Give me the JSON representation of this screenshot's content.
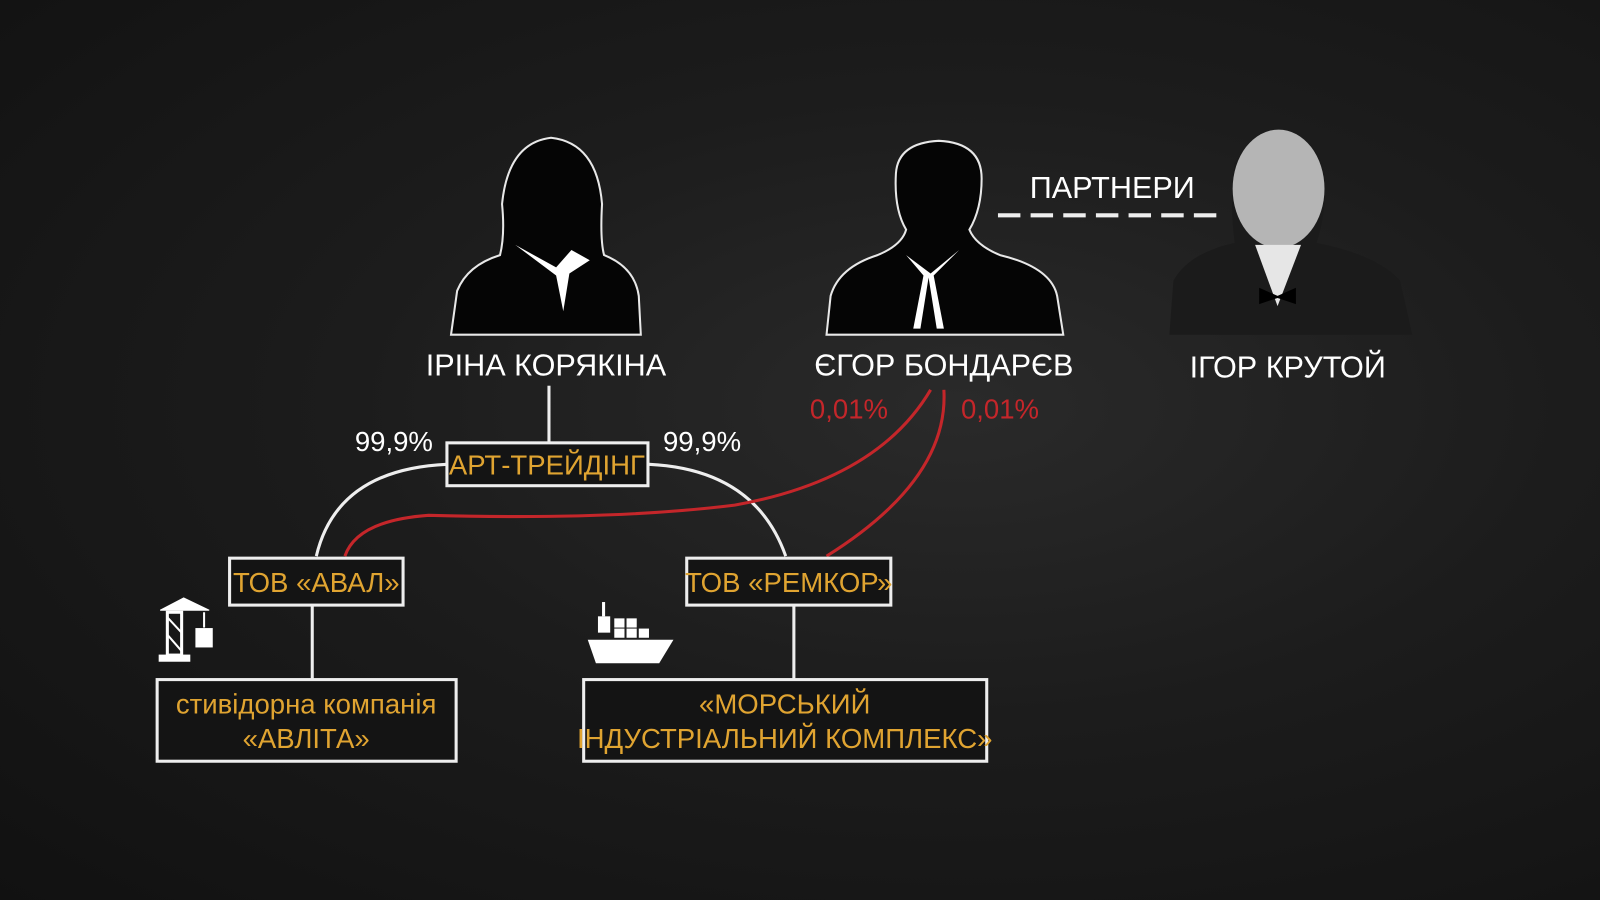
{
  "people": [
    {
      "name": "ІРІНА КОРЯКІНА",
      "icon": "female-silhouette-icon"
    },
    {
      "name": "ЄГОР БОНДАРЄВ",
      "icon": "male-silhouette-icon"
    },
    {
      "name": "ІГОР КРУТОЙ",
      "icon": "portrait-photo"
    }
  ],
  "relation": {
    "label": "ПАРТНЕРИ"
  },
  "companies": {
    "art_trading": "АРТ-ТРЕЙДІНГ",
    "aval": "ТОВ «АВАЛ»",
    "remkor": "ТОВ «РЕМКОР»",
    "avlita_line1": "стивідорна компанія",
    "avlita_line2": "«АВЛІТА»",
    "mik_line1": "«МОРСЬКИЙ",
    "mik_line2": "ІНДУСТРІАЛЬНИЙ КОМПЛЕКС»"
  },
  "shares": {
    "art_to_aval": "99,9%",
    "art_to_remkor": "99,9%",
    "bondarev_to_remkor": "0,01%",
    "bondarev_to_aval": "0,01%"
  },
  "colors": {
    "company_text": "#e0a431",
    "bondarev_links": "#c4262a",
    "lines": "#eeeeee"
  }
}
